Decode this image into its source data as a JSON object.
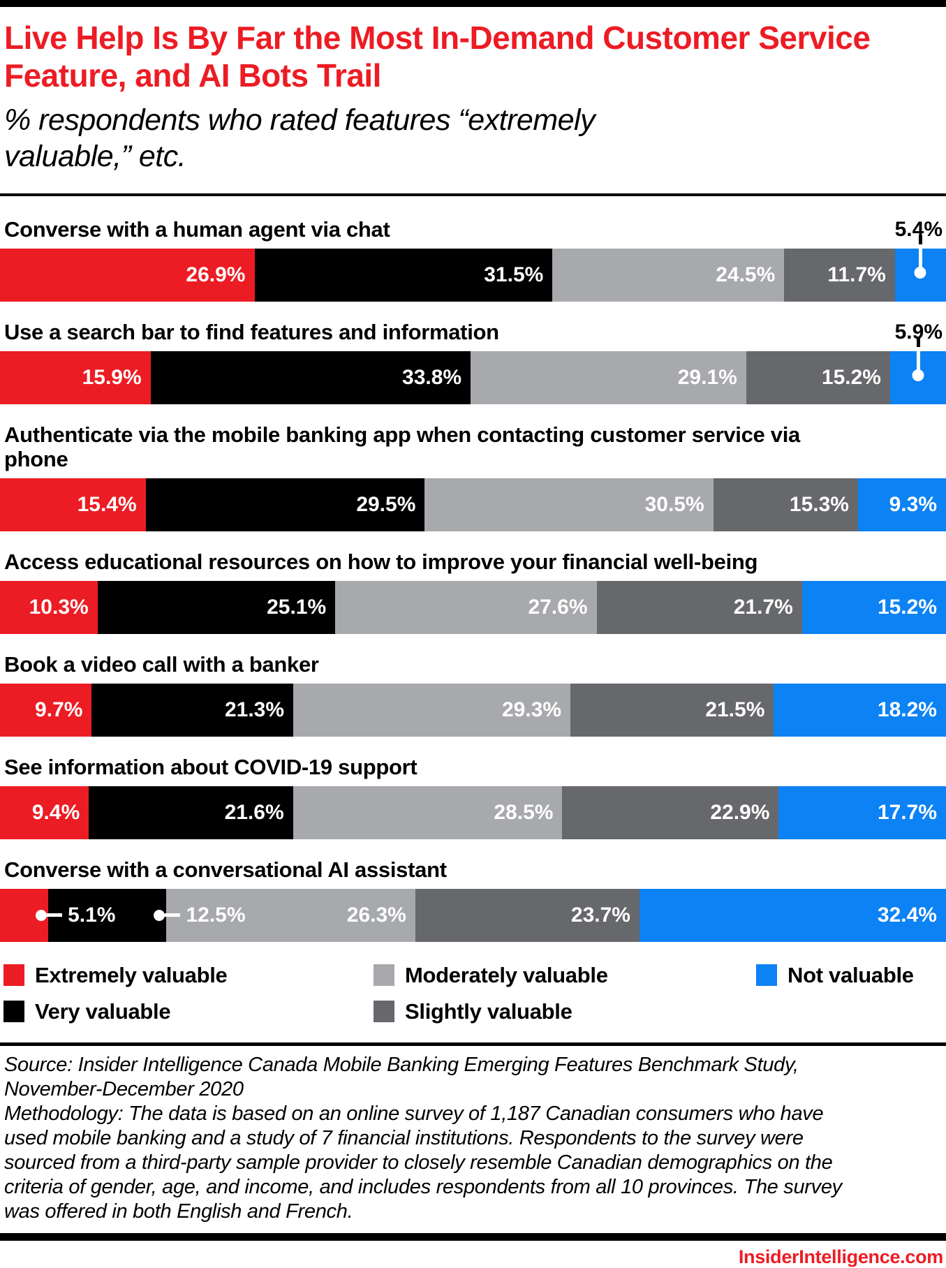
{
  "header": {
    "title": "Live Help Is By Far the Most In-Demand Customer Service Feature, and AI Bots Trail",
    "subtitle": "% respondents who rated features “extremely valuable,” etc."
  },
  "chart_data": {
    "type": "bar",
    "orientation": "horizontal-stacked",
    "unit": "%",
    "xlim": [
      0,
      100
    ],
    "grid": false,
    "legend_position": "bottom",
    "series": [
      {
        "name": "Extremely valuable",
        "color": "#EC1C24"
      },
      {
        "name": "Very valuable",
        "color": "#000000"
      },
      {
        "name": "Moderately valuable",
        "color": "#A7A9AC"
      },
      {
        "name": "Slightly valuable",
        "color": "#67686B"
      },
      {
        "name": "Not valuable",
        "color": "#0C82F4"
      }
    ],
    "rows": [
      {
        "label": "Converse with a human agent via chat",
        "values": [
          26.9,
          31.5,
          24.5,
          11.7,
          5.4
        ],
        "labels": [
          "26.9%",
          "31.5%",
          "24.5%",
          "11.7%",
          "5.4%"
        ],
        "last_value_callout": true
      },
      {
        "label": "Use a search bar to find features and information",
        "values": [
          15.9,
          33.8,
          29.1,
          15.2,
          5.9
        ],
        "labels": [
          "15.9%",
          "33.8%",
          "29.1%",
          "15.2%",
          "5.9%"
        ],
        "last_value_callout": true
      },
      {
        "label": "Authenticate via the mobile banking app when contacting customer service via phone",
        "values": [
          15.4,
          29.5,
          30.5,
          15.3,
          9.3
        ],
        "labels": [
          "15.4%",
          "29.5%",
          "30.5%",
          "15.3%",
          "9.3%"
        ]
      },
      {
        "label": "Access educational resources on how to improve your financial well-being",
        "values": [
          10.3,
          25.1,
          27.6,
          21.7,
          15.2
        ],
        "labels": [
          "10.3%",
          "25.1%",
          "27.6%",
          "21.7%",
          "15.2%"
        ]
      },
      {
        "label": "Book a video call with a banker",
        "values": [
          9.7,
          21.3,
          29.3,
          21.5,
          18.2
        ],
        "labels": [
          "9.7%",
          "21.3%",
          "29.3%",
          "21.5%",
          "18.2%"
        ]
      },
      {
        "label": "See information about COVID-19 support",
        "values": [
          9.4,
          21.6,
          28.5,
          22.9,
          17.7
        ],
        "labels": [
          "9.4%",
          "21.6%",
          "28.5%",
          "22.9%",
          "17.7%"
        ]
      },
      {
        "label": "Converse with a conversational AI assistant",
        "values": [
          5.1,
          12.5,
          26.3,
          23.7,
          32.4
        ],
        "labels": [
          "5.1%",
          "12.5%",
          "26.3%",
          "23.7%",
          "32.4%"
        ],
        "leader_label_segments": [
          0,
          1
        ]
      }
    ]
  },
  "footer": {
    "source": "Source: Insider Intelligence Canada Mobile Banking Emerging Features Benchmark Study, November-December 2020",
    "methodology": "Methodology: The data is based on an online survey of 1,187 Canadian consumers who have used mobile banking and a study of 7 financial institutions. Respondents to the survey were sourced from a third-party sample provider to closely resemble Canadian demographics on the criteria of gender, age, and income, and includes respondents from all 10 provinces. The survey was offered in both English and French.",
    "site": "InsiderIntelligence.com"
  }
}
